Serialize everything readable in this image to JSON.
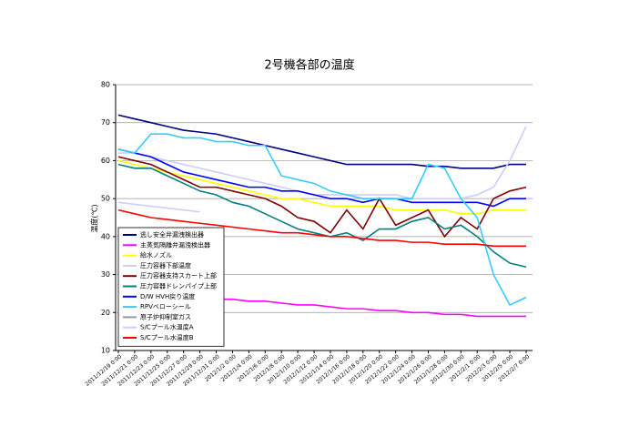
{
  "chart_data": {
    "type": "line",
    "title": "2号機各部の温度",
    "y_label": "温度(℃)",
    "categories": [
      "2011/12/19 0:00",
      "2011/12/21 0:00",
      "2011/12/23 0:00",
      "2011/12/25 0:00",
      "2011/12/27 0:00",
      "2011/12/29 0:00",
      "2011/12/31 0:00",
      "2012/1/2 0:00",
      "2012/1/4 0:00",
      "2012/1/6 0:00",
      "2012/1/8 0:00",
      "2012/1/10 0:00",
      "2012/1/12 0:00",
      "2012/1/14 0:00",
      "2012/1/16 0:00",
      "2012/1/18 0:00",
      "2012/1/20 0:00",
      "2012/1/22 0:00",
      "2012/1/24 0:00",
      "2012/1/26 0:00",
      "2012/1/28 0:00",
      "2012/1/30 0:00",
      "2012/2/1 0:00",
      "2012/2/3 0:00",
      "2012/2/5 0:00",
      "2012/2/7 0:00"
    ],
    "ylim": [
      10,
      80
    ],
    "yticks": [
      10,
      20,
      30,
      40,
      50,
      60,
      70,
      80
    ],
    "grid": true,
    "series": [
      {
        "name": "逃し安全弁漏洩検出器",
        "color": "#000080",
        "values": [
          72,
          71,
          70,
          69,
          68,
          67.5,
          67,
          66,
          65,
          64,
          63,
          62,
          61,
          60,
          59,
          59,
          59,
          59,
          59,
          58.5,
          58.5,
          58,
          58,
          58,
          59,
          59
        ]
      },
      {
        "name": "主蒸気隔離弁漏洩検出器",
        "color": "#ff00ff",
        "values": [
          26,
          25.5,
          25,
          24.5,
          24,
          24,
          23.5,
          23.5,
          23,
          23,
          22.5,
          22,
          22,
          21.5,
          21,
          21,
          20.5,
          20.5,
          20,
          20,
          19.5,
          19.5,
          19,
          19,
          19,
          19
        ]
      },
      {
        "name": "給水ノズル",
        "color": "#ffff00",
        "values": [
          60,
          59,
          58,
          57,
          56,
          55,
          54,
          53,
          52,
          51,
          50,
          50,
          49,
          48,
          48,
          48,
          48,
          47,
          47,
          47,
          47,
          46,
          46,
          47,
          47,
          47
        ]
      },
      {
        "name": "圧力容器下部温度",
        "color": "#ccccff",
        "values": [
          62,
          62,
          61,
          60,
          59,
          58,
          57,
          56,
          55,
          54,
          53,
          52,
          51,
          51,
          51,
          51,
          51,
          51,
          50,
          50,
          50,
          50,
          51,
          53,
          60,
          69
        ]
      },
      {
        "name": "圧力容器支持スカート上部",
        "color": "#800000",
        "values": [
          61,
          60,
          59,
          57,
          55,
          53,
          53,
          52,
          51,
          50,
          48,
          45,
          44,
          41,
          47,
          42,
          50,
          43,
          45,
          47,
          40,
          45,
          42,
          50,
          52,
          53
        ]
      },
      {
        "name": "圧力容器ドレンパイプ上部",
        "color": "#008080",
        "values": [
          59,
          58,
          58,
          56,
          54,
          52,
          51,
          49,
          48,
          46,
          44,
          42,
          41,
          40,
          41,
          39,
          42,
          42,
          44,
          45,
          42,
          43,
          40,
          36,
          33,
          32
        ]
      },
      {
        "name": "D/W HVH戻り温度",
        "color": "#0000ff",
        "values": [
          63,
          62,
          61,
          59,
          57,
          56,
          55,
          54,
          53,
          53,
          52,
          52,
          51,
          50,
          50,
          49,
          50,
          50,
          49,
          49,
          49,
          49,
          49,
          48,
          50,
          50
        ]
      },
      {
        "name": "RPVベローシール",
        "color": "#33ccff",
        "values": [
          63,
          62,
          67,
          67,
          66,
          66,
          65,
          65,
          64,
          64,
          56,
          55,
          54,
          52,
          51,
          50,
          50,
          50,
          50,
          59,
          58,
          50,
          45,
          30,
          22,
          24
        ]
      },
      {
        "name": "原子炉抑制室ガス",
        "color": "#999999",
        "values": [
          null,
          null,
          null,
          null,
          null,
          null,
          null,
          null,
          null,
          null,
          null,
          null,
          null,
          null,
          null,
          null,
          null,
          null,
          null,
          null,
          null,
          null,
          null,
          null,
          null,
          null
        ]
      },
      {
        "name": "S/Cプール水温度A",
        "color": "#ccccff",
        "values": [
          49,
          48.5,
          48,
          47.5,
          47,
          46.5,
          null,
          null,
          null,
          null,
          null,
          null,
          null,
          null,
          null,
          null,
          null,
          null,
          null,
          null,
          null,
          null,
          null,
          null,
          null,
          null
        ]
      },
      {
        "name": "S/Cプール水温度B",
        "color": "#ff0000",
        "values": [
          47,
          46,
          45,
          44.5,
          44,
          43.5,
          43,
          42.5,
          42,
          41.5,
          41,
          41,
          40.5,
          40,
          40,
          39.5,
          39,
          39,
          38.5,
          38.5,
          38,
          38,
          38,
          37.5,
          37.5,
          37.5
        ]
      }
    ]
  }
}
